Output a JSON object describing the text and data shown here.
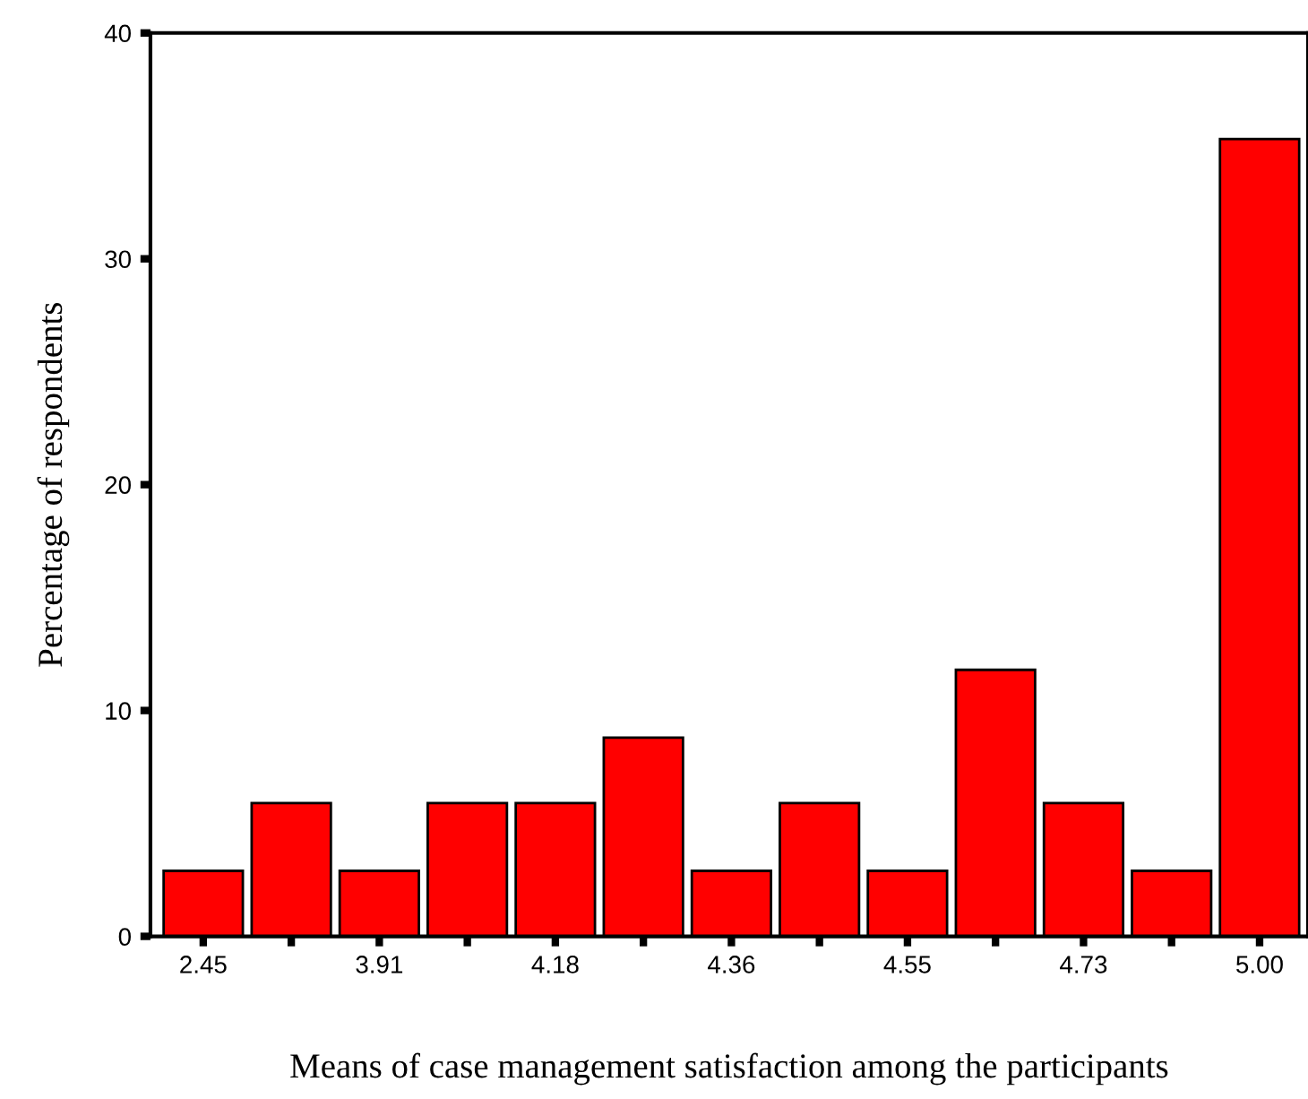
{
  "chart_data": {
    "type": "bar",
    "xlabel": "Means of case management satisfaction among the participants",
    "ylabel": "Percentage of respondents",
    "categories": [
      "2.45",
      null,
      "3.91",
      null,
      "4.18",
      null,
      "4.36",
      null,
      "4.55",
      null,
      "4.73",
      null,
      "5.00"
    ],
    "values": [
      2.9,
      5.9,
      2.9,
      5.9,
      5.9,
      8.8,
      2.9,
      5.9,
      2.9,
      11.8,
      5.9,
      2.9,
      35.3
    ],
    "color": "#ff0000",
    "ylim": [
      0,
      40
    ],
    "yticks": [
      0,
      10,
      20,
      30,
      40
    ],
    "grid": false,
    "legend": false
  }
}
